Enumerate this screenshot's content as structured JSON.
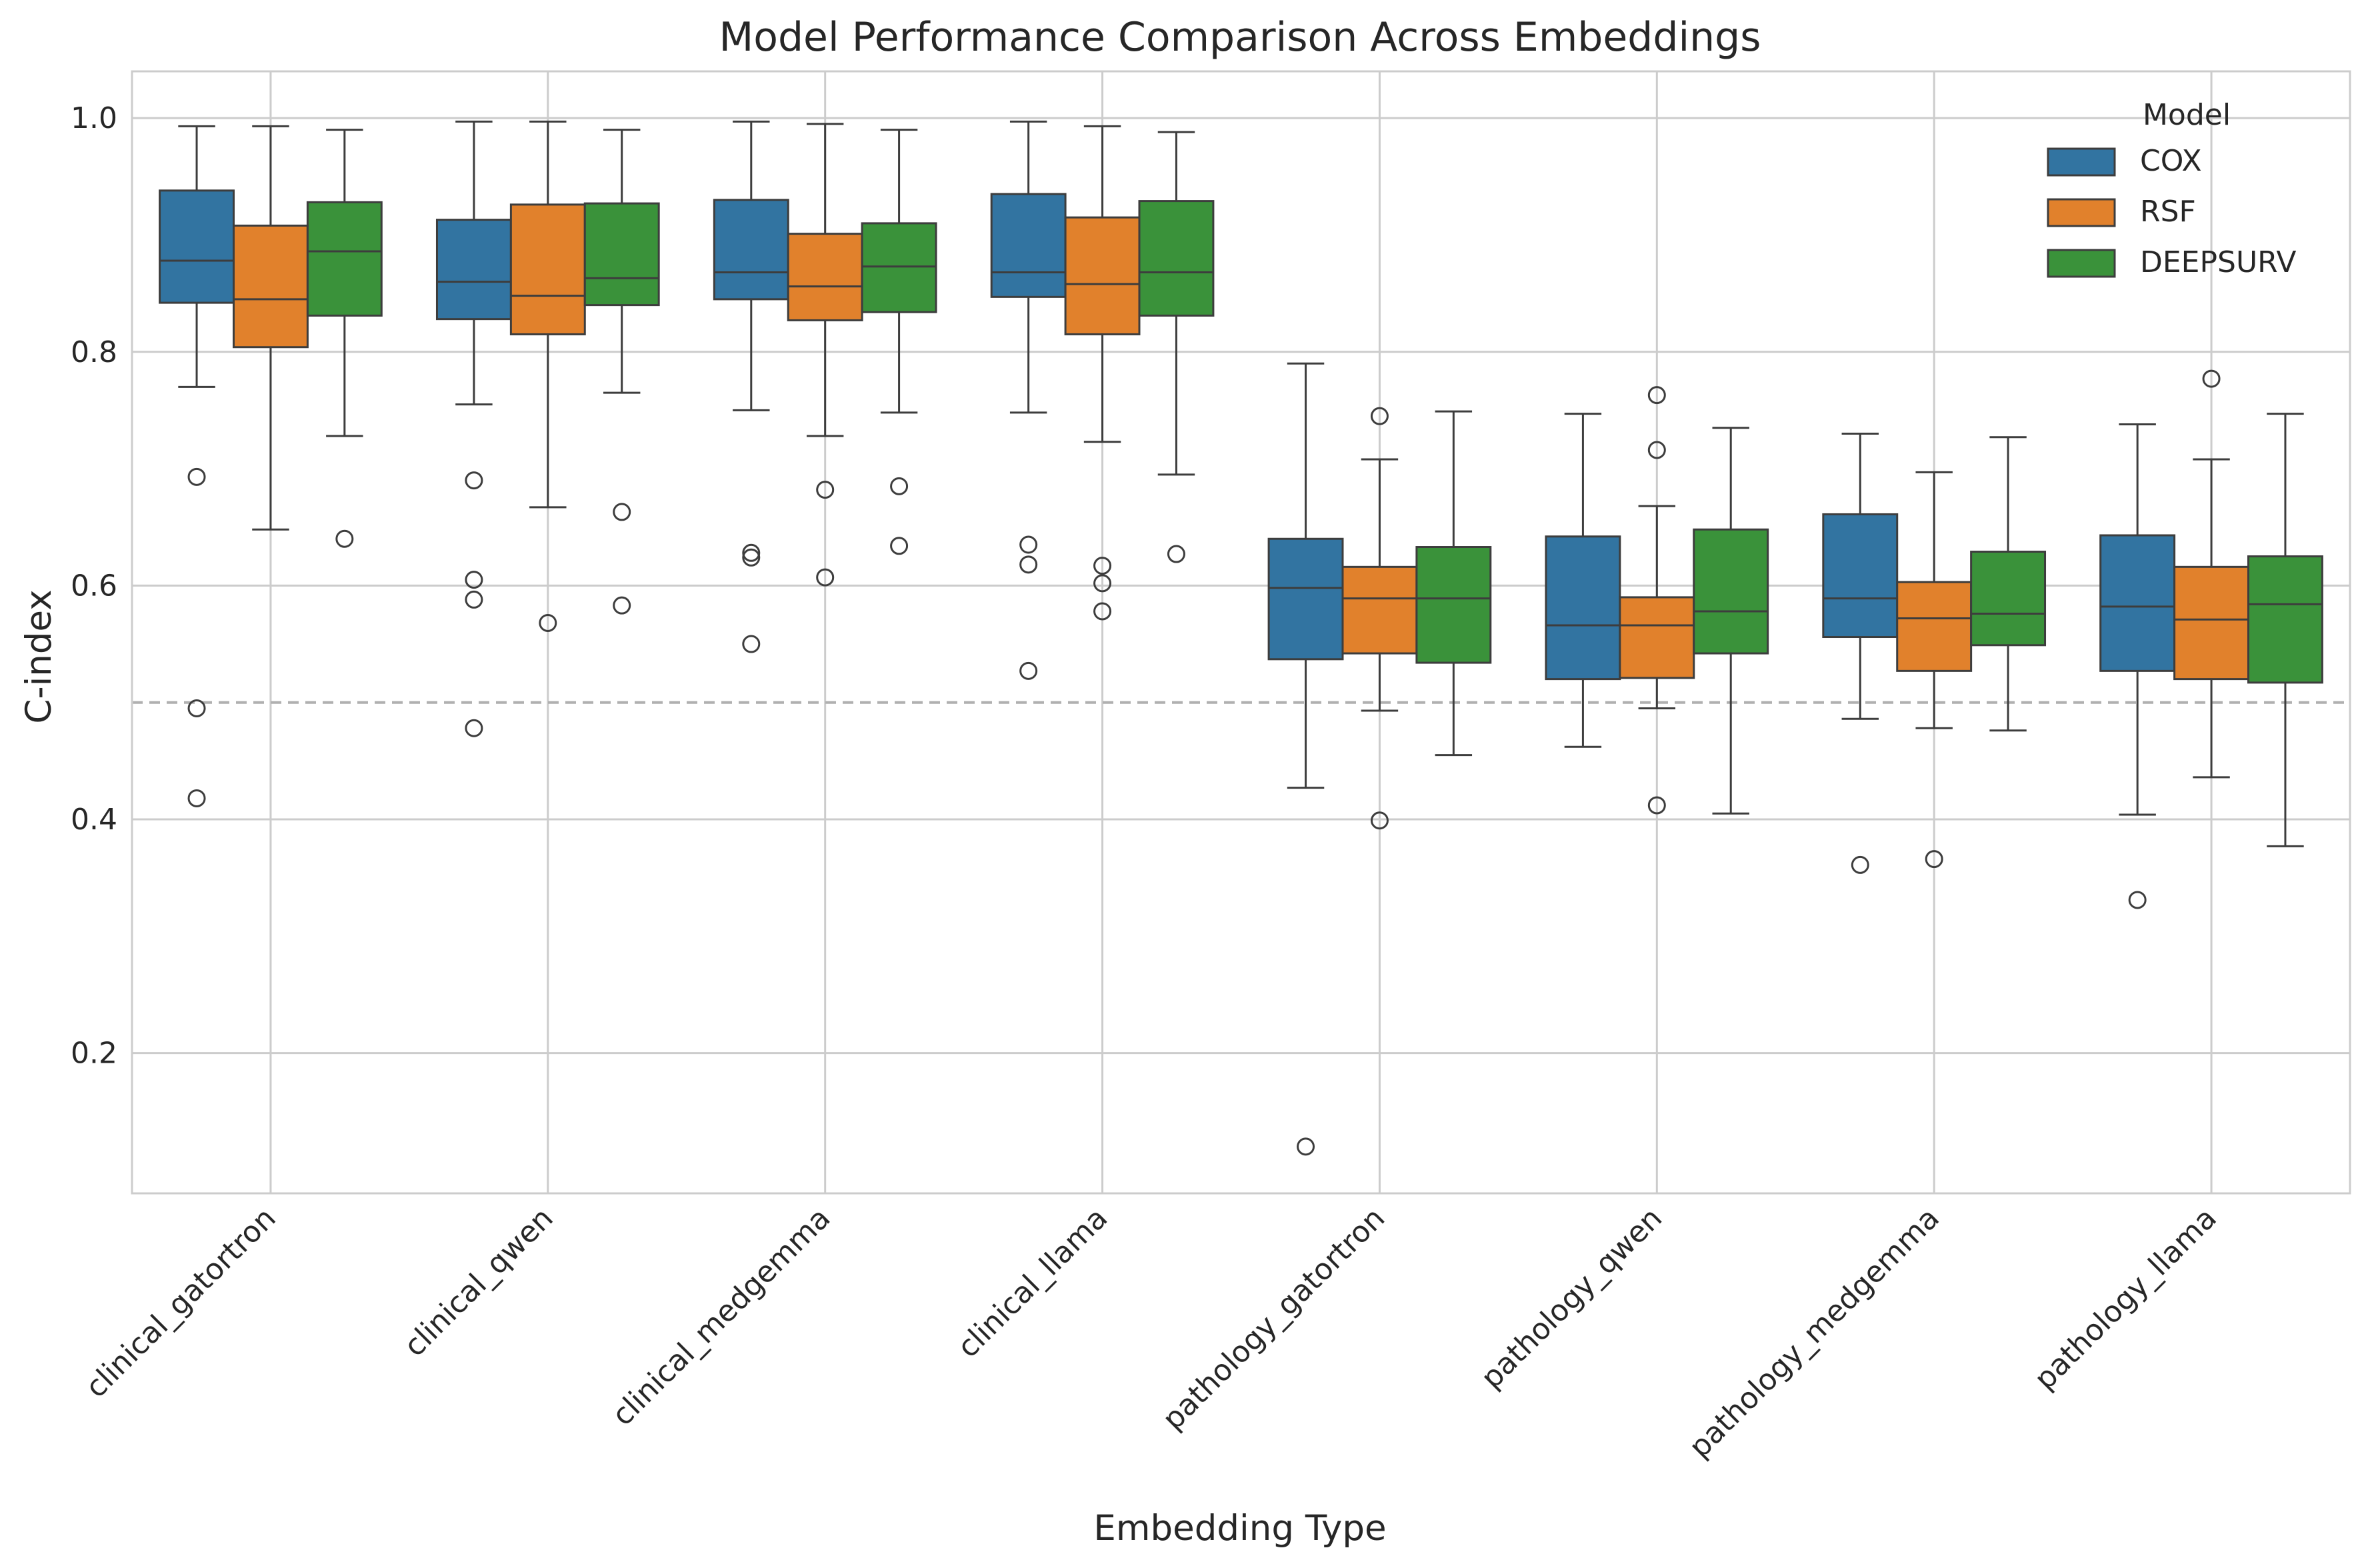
{
  "chart_data": {
    "type": "boxplot",
    "title": "Model Performance Comparison Across Embeddings",
    "xlabel": "Embedding Type",
    "ylabel": "C-index",
    "ylim": [
      0.08,
      1.04
    ],
    "yticks": [
      0.2,
      0.4,
      0.6,
      0.8,
      1.0
    ],
    "ytick_labels": [
      "0.2",
      "0.4",
      "0.6",
      "0.8",
      "1.0"
    ],
    "grid": true,
    "reference_line": 0.5,
    "legend": {
      "title": "Model",
      "position": "top-right"
    },
    "categories": [
      "clinical_gatortron",
      "clinical_qwen",
      "clinical_medgemma",
      "clinical_llama",
      "pathology_gatortron",
      "pathology_qwen",
      "pathology_medgemma",
      "pathology_llama"
    ],
    "series": [
      {
        "name": "COX",
        "color": "#3274a1",
        "boxes": [
          {
            "whislo": 0.77,
            "q1": 0.842,
            "med": 0.878,
            "q3": 0.938,
            "whishi": 0.993,
            "fliers": [
              0.693,
              0.495,
              0.418
            ]
          },
          {
            "whislo": 0.755,
            "q1": 0.828,
            "med": 0.86,
            "q3": 0.913,
            "whishi": 0.997,
            "fliers": [
              0.69,
              0.605,
              0.588,
              0.478
            ]
          },
          {
            "whislo": 0.75,
            "q1": 0.845,
            "med": 0.868,
            "q3": 0.93,
            "whishi": 0.997,
            "fliers": [
              0.628,
              0.624,
              0.55
            ]
          },
          {
            "whislo": 0.748,
            "q1": 0.847,
            "med": 0.868,
            "q3": 0.935,
            "whishi": 0.997,
            "fliers": [
              0.635,
              0.618,
              0.527
            ]
          },
          {
            "whislo": 0.427,
            "q1": 0.537,
            "med": 0.598,
            "q3": 0.64,
            "whishi": 0.79,
            "fliers": [
              0.12
            ]
          },
          {
            "whislo": 0.462,
            "q1": 0.52,
            "med": 0.566,
            "q3": 0.642,
            "whishi": 0.747,
            "fliers": []
          },
          {
            "whislo": 0.486,
            "q1": 0.556,
            "med": 0.589,
            "q3": 0.661,
            "whishi": 0.73,
            "fliers": [
              0.361
            ]
          },
          {
            "whislo": 0.404,
            "q1": 0.527,
            "med": 0.582,
            "q3": 0.643,
            "whishi": 0.738,
            "fliers": [
              0.331
            ]
          }
        ]
      },
      {
        "name": "RSF",
        "color": "#e1812c",
        "boxes": [
          {
            "whislo": 0.648,
            "q1": 0.804,
            "med": 0.845,
            "q3": 0.908,
            "whishi": 0.993,
            "fliers": []
          },
          {
            "whislo": 0.667,
            "q1": 0.815,
            "med": 0.848,
            "q3": 0.926,
            "whishi": 0.997,
            "fliers": [
              0.568
            ]
          },
          {
            "whislo": 0.728,
            "q1": 0.827,
            "med": 0.856,
            "q3": 0.901,
            "whishi": 0.995,
            "fliers": [
              0.682,
              0.607
            ]
          },
          {
            "whislo": 0.723,
            "q1": 0.815,
            "med": 0.858,
            "q3": 0.915,
            "whishi": 0.993,
            "fliers": [
              0.617,
              0.602,
              0.578
            ]
          },
          {
            "whislo": 0.493,
            "q1": 0.542,
            "med": 0.589,
            "q3": 0.616,
            "whishi": 0.708,
            "fliers": [
              0.745,
              0.399
            ]
          },
          {
            "whislo": 0.495,
            "q1": 0.521,
            "med": 0.566,
            "q3": 0.59,
            "whishi": 0.668,
            "fliers": [
              0.763,
              0.716,
              0.412
            ]
          },
          {
            "whislo": 0.478,
            "q1": 0.527,
            "med": 0.572,
            "q3": 0.603,
            "whishi": 0.697,
            "fliers": [
              0.366
            ]
          },
          {
            "whislo": 0.436,
            "q1": 0.52,
            "med": 0.571,
            "q3": 0.616,
            "whishi": 0.708,
            "fliers": [
              0.777
            ]
          }
        ]
      },
      {
        "name": "DEEPSURV",
        "color": "#3a923a",
        "boxes": [
          {
            "whislo": 0.728,
            "q1": 0.831,
            "med": 0.886,
            "q3": 0.928,
            "whishi": 0.99,
            "fliers": [
              0.64
            ]
          },
          {
            "whislo": 0.765,
            "q1": 0.84,
            "med": 0.863,
            "q3": 0.927,
            "whishi": 0.99,
            "fliers": [
              0.663,
              0.583
            ]
          },
          {
            "whislo": 0.748,
            "q1": 0.834,
            "med": 0.873,
            "q3": 0.91,
            "whishi": 0.99,
            "fliers": [
              0.685,
              0.634
            ]
          },
          {
            "whislo": 0.695,
            "q1": 0.831,
            "med": 0.868,
            "q3": 0.929,
            "whishi": 0.988,
            "fliers": [
              0.627
            ]
          },
          {
            "whislo": 0.455,
            "q1": 0.534,
            "med": 0.589,
            "q3": 0.633,
            "whishi": 0.749,
            "fliers": []
          },
          {
            "whislo": 0.405,
            "q1": 0.542,
            "med": 0.578,
            "q3": 0.648,
            "whishi": 0.735,
            "fliers": []
          },
          {
            "whislo": 0.476,
            "q1": 0.549,
            "med": 0.576,
            "q3": 0.629,
            "whishi": 0.727,
            "fliers": []
          },
          {
            "whislo": 0.377,
            "q1": 0.517,
            "med": 0.584,
            "q3": 0.625,
            "whishi": 0.747,
            "fliers": []
          }
        ]
      }
    ]
  }
}
